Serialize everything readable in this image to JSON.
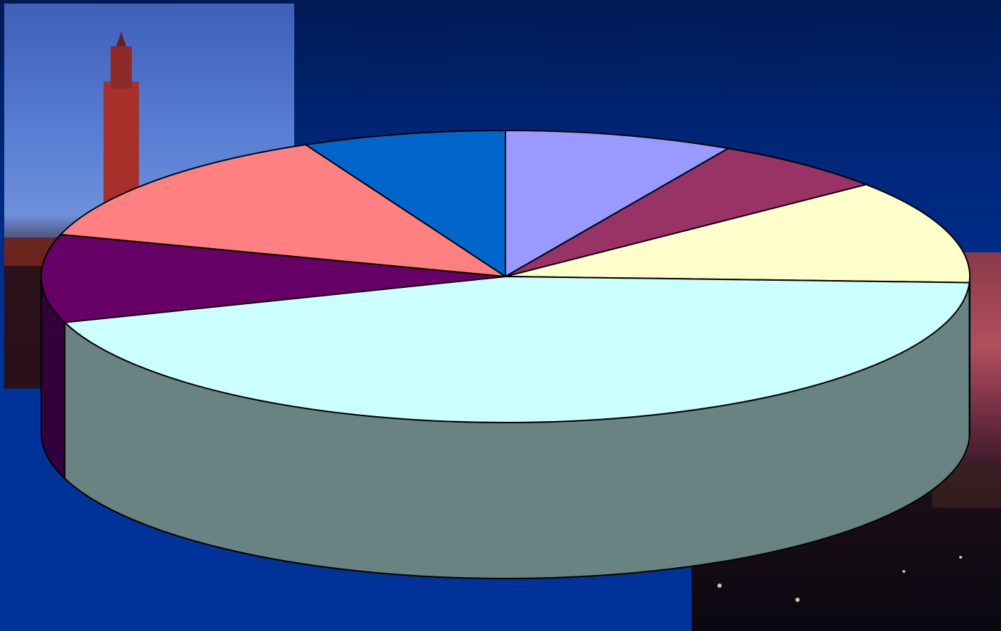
{
  "title": "",
  "chart_data": {
    "type": "pie",
    "title": "",
    "view": "3d",
    "legend": "none",
    "values": [
      9,
      7,
      13,
      50,
      11,
      15,
      8
    ],
    "colors": [
      "#9999ff",
      "#993366",
      "#ffffcc",
      "#ccffff",
      "#660066",
      "#ff8080",
      "#0066cc"
    ],
    "side_colors": [
      "#6b6bb3",
      "#6b2447",
      "#b3b38f",
      "#698383",
      "#33003d",
      "#b35a5a",
      "#00478f"
    ]
  }
}
